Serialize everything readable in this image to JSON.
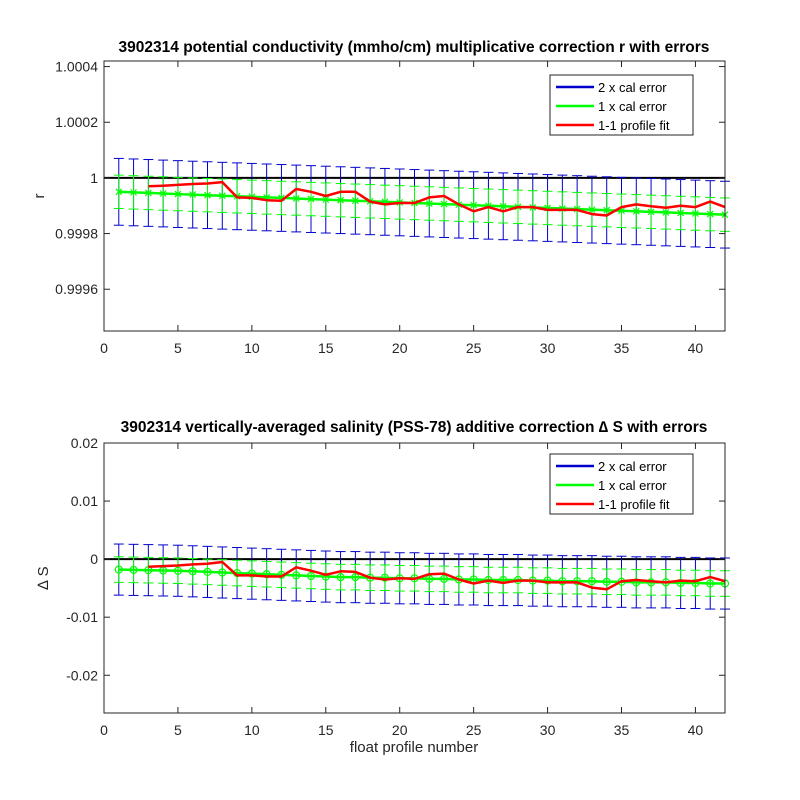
{
  "chart_data": [
    {
      "type": "line",
      "title": "3902314 potential conductivity (mmho/cm) multiplicative correction r with errors",
      "xlabel": "",
      "ylabel": "r",
      "xlim": [
        0,
        42
      ],
      "ylim": [
        0.99945,
        1.00042
      ],
      "xticks": [
        0,
        5,
        10,
        15,
        20,
        25,
        30,
        35,
        40
      ],
      "yticks": [
        0.9996,
        0.9998,
        1,
        1.0002,
        1.0004
      ],
      "ytick_labels": [
        "0.9996",
        "0.9998",
        "1",
        "1.0002",
        "1.0004"
      ],
      "reference_line": 1,
      "legend_position": "top-right",
      "legend": [
        {
          "label": "2 x cal error",
          "color": "#0000cc"
        },
        {
          "label": "1 x cal error",
          "color": "#00ff00"
        },
        {
          "label": "1-1 profile fit",
          "color": "#ff0000"
        }
      ],
      "fit": {
        "x": [
          1,
          2,
          3,
          4,
          5,
          6,
          7,
          8,
          9,
          10,
          11,
          12,
          13,
          14,
          15,
          16,
          17,
          18,
          19,
          20,
          21,
          22,
          23,
          24,
          25,
          26,
          27,
          28,
          29,
          30,
          31,
          32,
          33,
          34,
          35,
          36,
          37,
          38,
          39,
          40,
          41,
          42
        ],
        "y": [
          0.99995,
          0.999948,
          0.999946,
          0.999944,
          0.999942,
          0.99994,
          0.999938,
          0.999936,
          0.999934,
          0.999932,
          0.99993,
          0.999928,
          0.999926,
          0.999924,
          0.999922,
          0.99992,
          0.999918,
          0.999916,
          0.999914,
          0.999912,
          0.99991,
          0.999908,
          0.999906,
          0.999904,
          0.999902,
          0.9999,
          0.999898,
          0.999896,
          0.999894,
          0.999892,
          0.99989,
          0.999888,
          0.999886,
          0.999884,
          0.999882,
          0.99988,
          0.999878,
          0.999876,
          0.999874,
          0.999872,
          0.99987,
          0.999868
        ],
        "err1": 6e-05,
        "err2": 0.00012
      },
      "profile": {
        "x": [
          3,
          4,
          5,
          6,
          7,
          8,
          9,
          10,
          11,
          12,
          13,
          14,
          15,
          16,
          17,
          18,
          19,
          20,
          21,
          22,
          23,
          24,
          25,
          26,
          27,
          28,
          29,
          30,
          31,
          32,
          33,
          34,
          35,
          36,
          37,
          38,
          39,
          40,
          41,
          42
        ],
        "y": [
          0.99997,
          0.999972,
          0.999975,
          0.999978,
          0.99998,
          0.999985,
          0.99993,
          0.999928,
          0.99992,
          0.999918,
          0.99996,
          0.99995,
          0.999935,
          0.99995,
          0.99995,
          0.999915,
          0.999905,
          0.99991,
          0.99991,
          0.99993,
          0.999935,
          0.999905,
          0.99988,
          0.999895,
          0.99988,
          0.999895,
          0.999895,
          0.999885,
          0.999885,
          0.999885,
          0.99987,
          0.999865,
          0.999895,
          0.999905,
          0.999898,
          0.999893,
          0.9999,
          0.999895,
          0.999915,
          0.999895
        ]
      }
    },
    {
      "type": "line",
      "title": "3902314 vertically-averaged salinity (PSS-78) additive correction ∆ S with errors",
      "xlabel": "float profile number",
      "ylabel": "∆ S",
      "xlim": [
        0,
        42
      ],
      "ylim": [
        -0.0265,
        0.02
      ],
      "xticks": [
        0,
        5,
        10,
        15,
        20,
        25,
        30,
        35,
        40
      ],
      "yticks": [
        -0.02,
        -0.01,
        0,
        0.01,
        0.02
      ],
      "ytick_labels": [
        "-0.02",
        "-0.01",
        "0",
        "0.01",
        "0.02"
      ],
      "reference_line": 0,
      "legend_position": "top-right",
      "legend": [
        {
          "label": "2 x cal error",
          "color": "#0000cc"
        },
        {
          "label": "1 x cal error",
          "color": "#00ff00"
        },
        {
          "label": "1-1 profile fit",
          "color": "#ff0000"
        }
      ],
      "fit": {
        "x": [
          1,
          2,
          3,
          4,
          5,
          6,
          7,
          8,
          9,
          10,
          11,
          12,
          13,
          14,
          15,
          16,
          17,
          18,
          19,
          20,
          21,
          22,
          23,
          24,
          25,
          26,
          27,
          28,
          29,
          30,
          31,
          32,
          33,
          34,
          35,
          36,
          37,
          38,
          39,
          40,
          41,
          42
        ],
        "y": [
          -0.0018,
          -0.00185,
          -0.0019,
          -0.00195,
          -0.002,
          -0.0021,
          -0.0022,
          -0.0023,
          -0.0024,
          -0.0025,
          -0.0026,
          -0.0027,
          -0.0028,
          -0.0029,
          -0.003,
          -0.0031,
          -0.0031,
          -0.0032,
          -0.0032,
          -0.0033,
          -0.0033,
          -0.0034,
          -0.0034,
          -0.0035,
          -0.0035,
          -0.0036,
          -0.0036,
          -0.0036,
          -0.0037,
          -0.0037,
          -0.0038,
          -0.0038,
          -0.0038,
          -0.0039,
          -0.0039,
          -0.004,
          -0.004,
          -0.004,
          -0.0041,
          -0.0041,
          -0.0042,
          -0.0042
        ],
        "err1": 0.0022,
        "err2": 0.0044
      },
      "profile": {
        "x": [
          3,
          4,
          5,
          6,
          7,
          8,
          9,
          10,
          11,
          12,
          13,
          14,
          15,
          16,
          17,
          18,
          19,
          20,
          21,
          22,
          23,
          24,
          25,
          26,
          27,
          28,
          29,
          30,
          31,
          32,
          33,
          34,
          35,
          36,
          37,
          38,
          39,
          40,
          41,
          42
        ],
        "y": [
          -0.0013,
          -0.0012,
          -0.0011,
          -0.0009,
          -0.0008,
          -0.0005,
          -0.0028,
          -0.0028,
          -0.003,
          -0.003,
          -0.0014,
          -0.002,
          -0.0027,
          -0.0021,
          -0.0022,
          -0.0032,
          -0.0035,
          -0.0033,
          -0.0034,
          -0.0026,
          -0.0025,
          -0.0035,
          -0.0042,
          -0.0037,
          -0.0041,
          -0.0037,
          -0.0037,
          -0.004,
          -0.004,
          -0.004,
          -0.0049,
          -0.0052,
          -0.0038,
          -0.0036,
          -0.0038,
          -0.004,
          -0.0037,
          -0.0038,
          -0.0031,
          -0.0038
        ]
      }
    }
  ]
}
